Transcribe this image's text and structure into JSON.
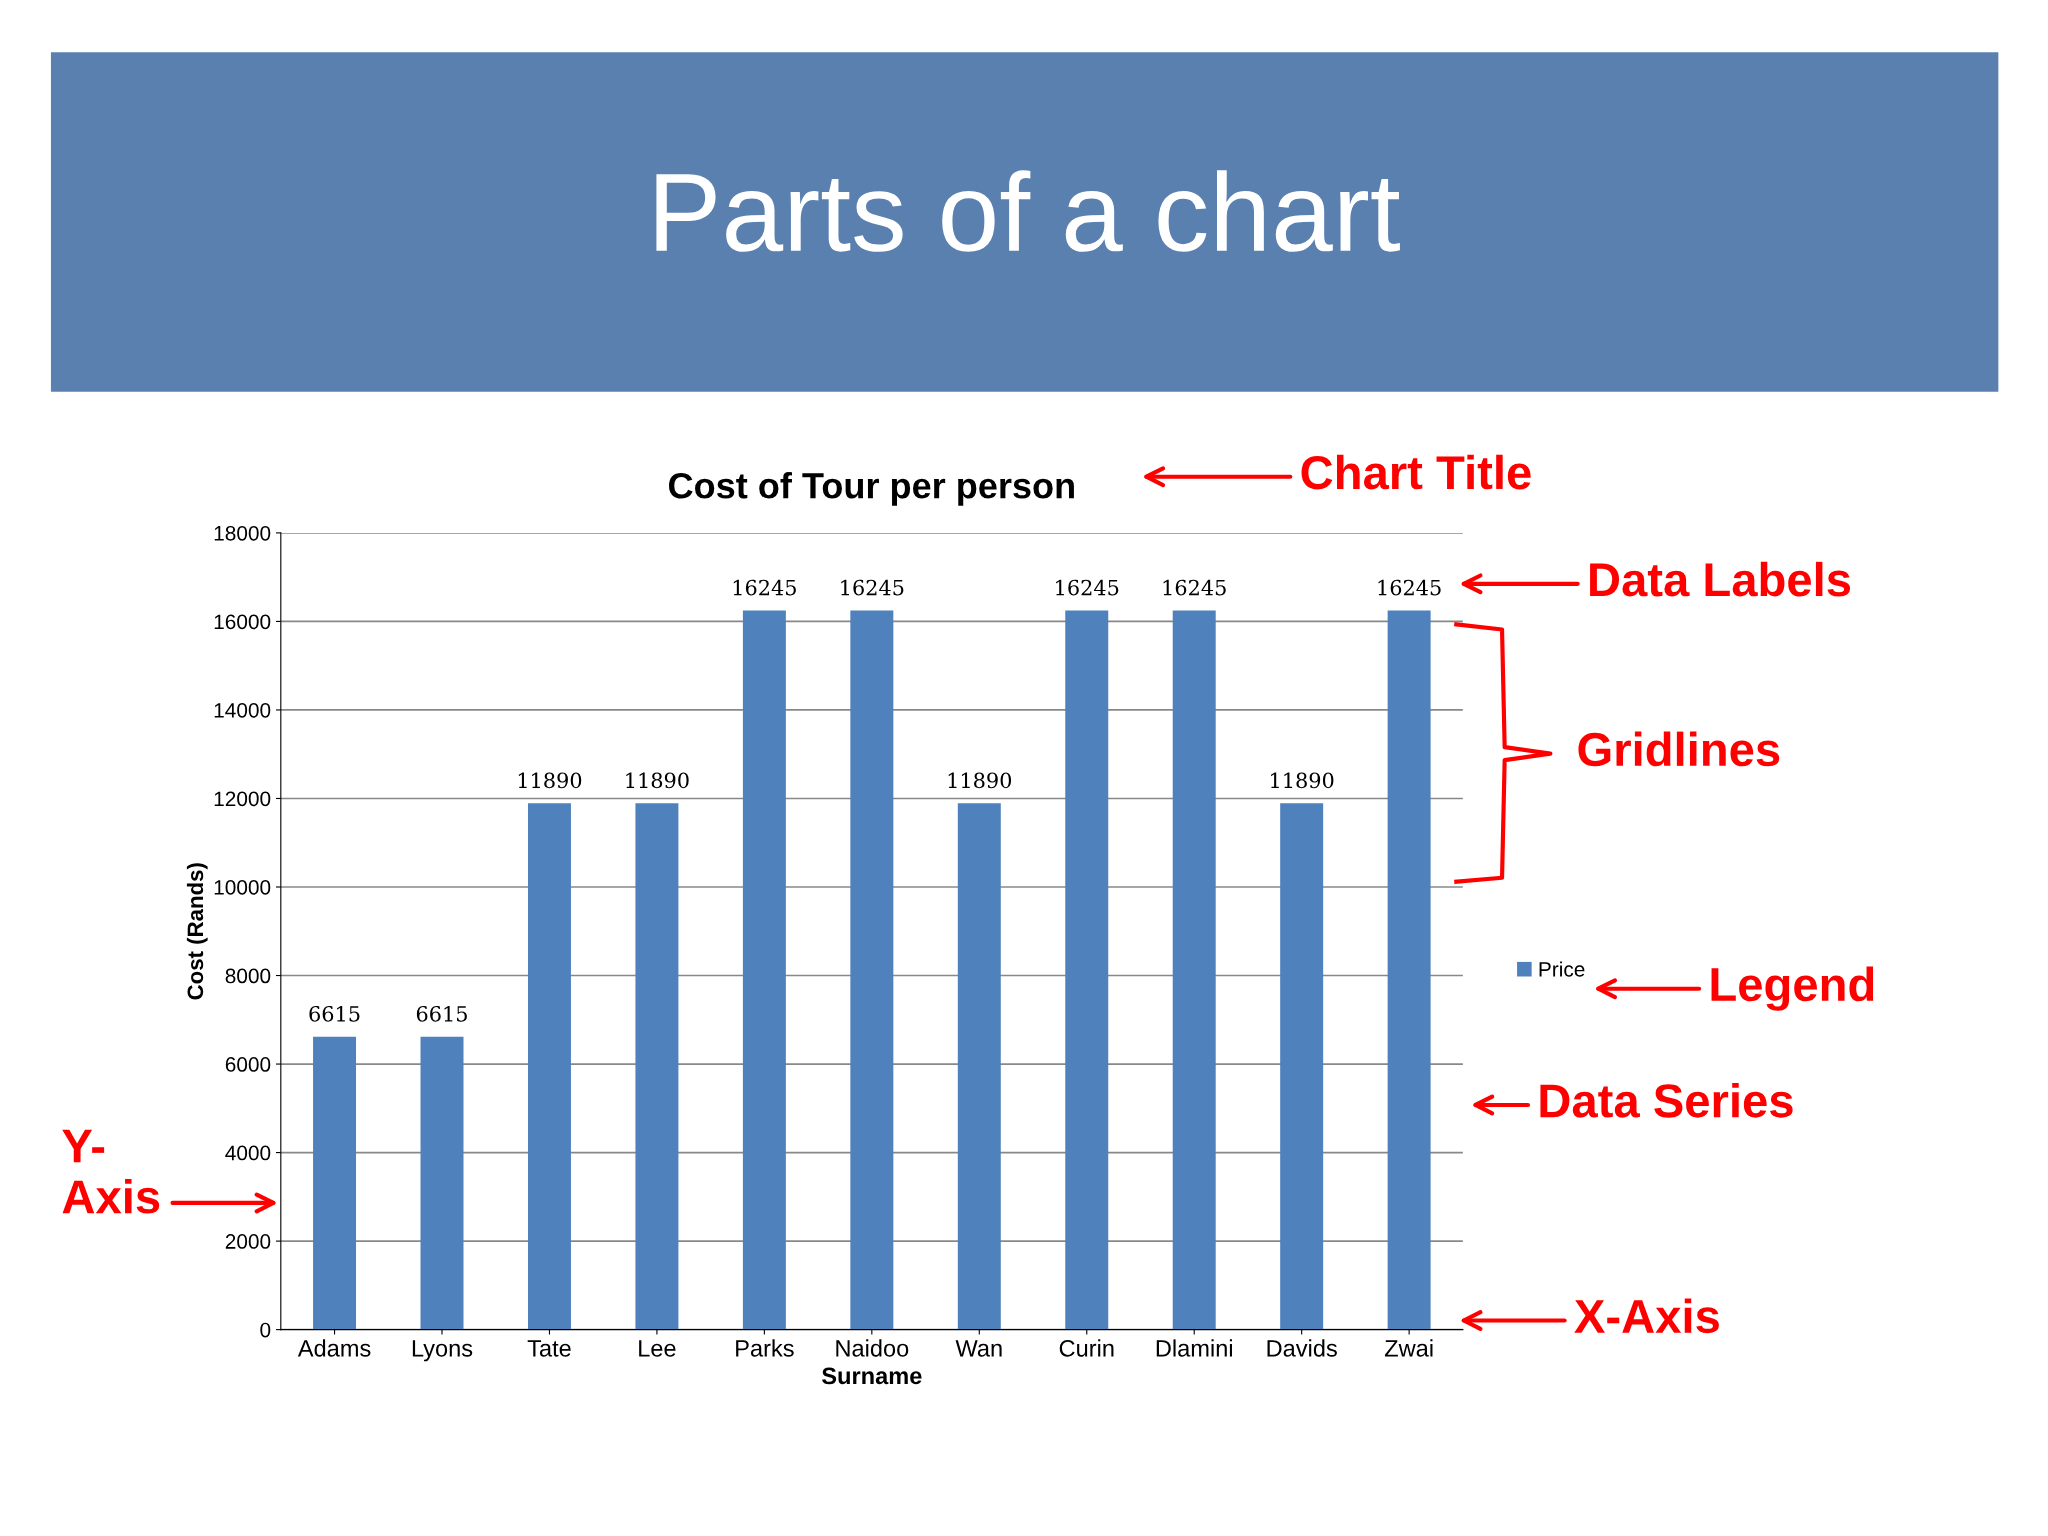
{
  "chart_data": {
    "type": "bar",
    "title": "Cost of Tour per person",
    "xlabel": "Surname",
    "ylabel": "Cost (Rands)",
    "categories": [
      "Adams",
      "Lyons",
      "Tate",
      "Lee",
      "Parks",
      "Naidoo",
      "Wan",
      "Curin",
      "Dlamini",
      "Davids",
      "Zwai"
    ],
    "series": [
      {
        "name": "Price",
        "color": "#4f81bd",
        "values": [
          6615,
          6615,
          11890,
          11890,
          16245,
          16245,
          11890,
          16245,
          16245,
          11890,
          16245
        ]
      }
    ],
    "ylim": [
      0,
      18000
    ],
    "yticks": [
      0,
      2000,
      4000,
      6000,
      8000,
      10000,
      12000,
      14000,
      16000,
      18000
    ],
    "grid": "y",
    "legend": "right",
    "data_labels": true,
    "annotations": [
      "Parts of a chart",
      "Chart Title",
      "Data Labels",
      "Gridlines",
      "Legend",
      "Data Series",
      "Y-\nAxis",
      "X-Axis"
    ]
  }
}
